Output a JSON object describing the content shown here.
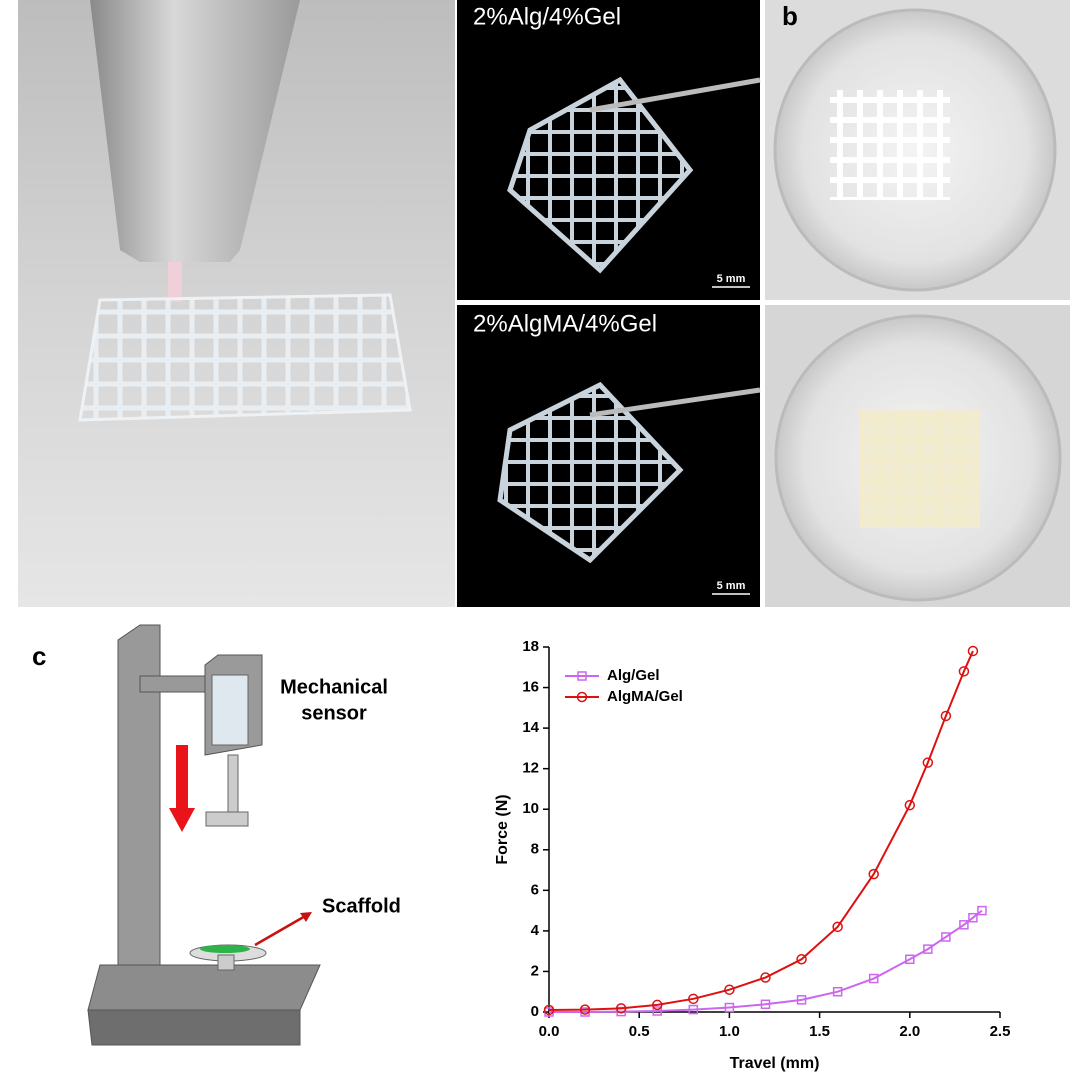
{
  "panels": {
    "a_top_label": "2%Alg/4%Gel",
    "a_top_scale": "5 mm",
    "a_bottom_label": "2%AlgMA/4%Gel",
    "a_bottom_scale": "5 mm",
    "b_label": "b",
    "c_label": "c"
  },
  "diagram": {
    "sensor": [
      "Mechanical",
      "sensor"
    ],
    "scaffold": "Scaffold"
  },
  "chart_data": {
    "type": "line",
    "x_label": "Travel (mm)",
    "y_label": "Force (N)",
    "x": [
      0,
      0.2,
      0.4,
      0.6,
      0.8,
      1.0,
      1.2,
      1.4,
      1.6,
      1.8,
      2.0,
      2.1,
      2.2,
      2.3,
      2.35,
      2.4
    ],
    "series": [
      {
        "name": "Alg/Gel",
        "color": "#cc66ee",
        "marker": "square",
        "values": [
          0,
          0,
          0.02,
          0.05,
          0.12,
          0.22,
          0.38,
          0.6,
          1.0,
          1.65,
          2.6,
          3.1,
          3.7,
          4.3,
          4.65,
          5.0
        ]
      },
      {
        "name": "AlgMA/Gel",
        "color": "#dd1111",
        "marker": "circle",
        "values": [
          0.1,
          0.12,
          0.18,
          0.35,
          0.65,
          1.1,
          1.7,
          2.6,
          4.2,
          6.8,
          10.2,
          12.3,
          14.6,
          16.8,
          17.8,
          null
        ]
      }
    ],
    "xlim": [
      0,
      2.5
    ],
    "ylim": [
      0,
      18
    ],
    "xticks": [
      {
        "value": 0,
        "label": "0.0"
      },
      0.5,
      {
        "value": 1,
        "label": "1.0"
      },
      1.5,
      {
        "value": 2,
        "label": "2.0"
      },
      2.5
    ],
    "yticks": [
      0,
      2,
      4,
      6,
      8,
      10,
      12,
      14,
      16,
      18
    ],
    "legend": "upper left",
    "grid": false
  }
}
